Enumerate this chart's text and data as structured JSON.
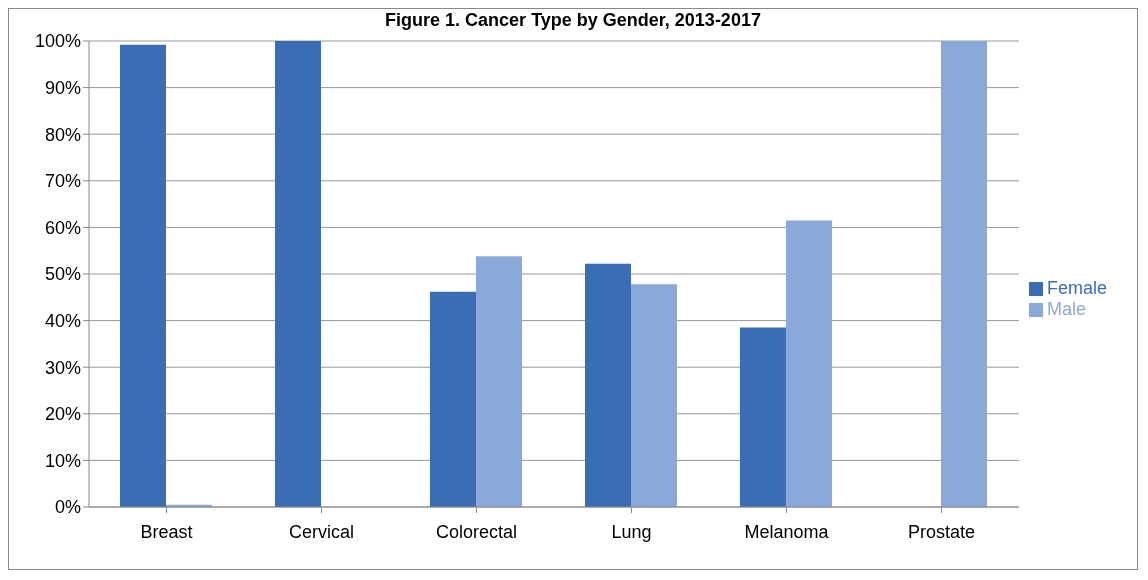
{
  "chart_data": {
    "type": "bar",
    "title": "Figure 1. Cancer Type by Gender, 2013-2017",
    "categories": [
      "Breast",
      "Cervical",
      "Colorectal",
      "Lung",
      "Melanoma",
      "Prostate"
    ],
    "series": [
      {
        "name": "Female",
        "color": "#3a6db3",
        "values": [
          99.2,
          100,
          46.2,
          52.2,
          38.5,
          0
        ]
      },
      {
        "name": "Male",
        "color": "#8aa8d8",
        "values": [
          0.5,
          0,
          53.8,
          47.8,
          61.5,
          100
        ]
      }
    ],
    "ylim": [
      0,
      100
    ],
    "yticks": [
      {
        "value": 0,
        "label": "0%"
      },
      {
        "value": 10,
        "label": "10%"
      },
      {
        "value": 20,
        "label": "20%"
      },
      {
        "value": 30,
        "label": "30%"
      },
      {
        "value": 40,
        "label": "40%"
      },
      {
        "value": 50,
        "label": "50%"
      },
      {
        "value": 60,
        "label": "60%"
      },
      {
        "value": 70,
        "label": "70%"
      },
      {
        "value": 80,
        "label": "80%"
      },
      {
        "value": 90,
        "label": "90%"
      },
      {
        "value": 100,
        "label": "100%"
      }
    ],
    "grid": "y",
    "legend": "right"
  }
}
